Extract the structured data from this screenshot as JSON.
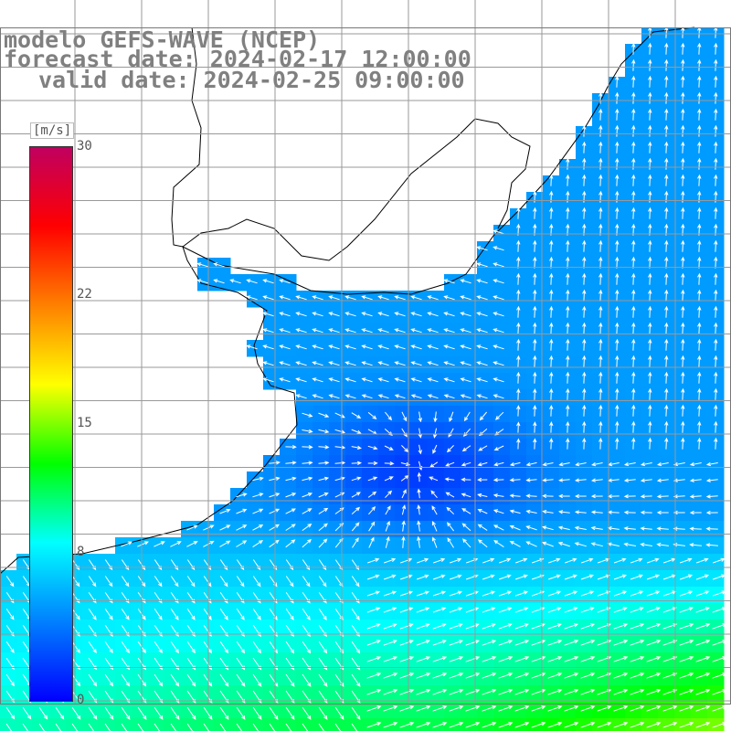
{
  "title": {
    "model": "modelo GEFS-WAVE (NCEP)",
    "forecast": "forecast date: 2024-02-17 12:00:00",
    "valid": "valid date: 2024-02-25 09:00:00"
  },
  "colorbar": {
    "unit": "[m/s]",
    "ticks": [
      {
        "value": 30,
        "label": "30"
      },
      {
        "value": 22,
        "label": "22"
      },
      {
        "value": 15,
        "label": "15"
      },
      {
        "value": 8,
        "label": "8"
      },
      {
        "value": 0,
        "label": "0"
      }
    ],
    "range": [
      0,
      30
    ],
    "colors": [
      "#0000ff",
      "#0080ff",
      "#00ffff",
      "#00ff00",
      "#ffff00",
      "#ff8000",
      "#ff0000",
      "#c00060"
    ]
  },
  "map": {
    "land_color": "#ffffff",
    "grid_color": "#999999",
    "arrow_color": "#ffffff",
    "coastline_color": "#000000",
    "field_description": "wind speed with direction arrows"
  }
}
